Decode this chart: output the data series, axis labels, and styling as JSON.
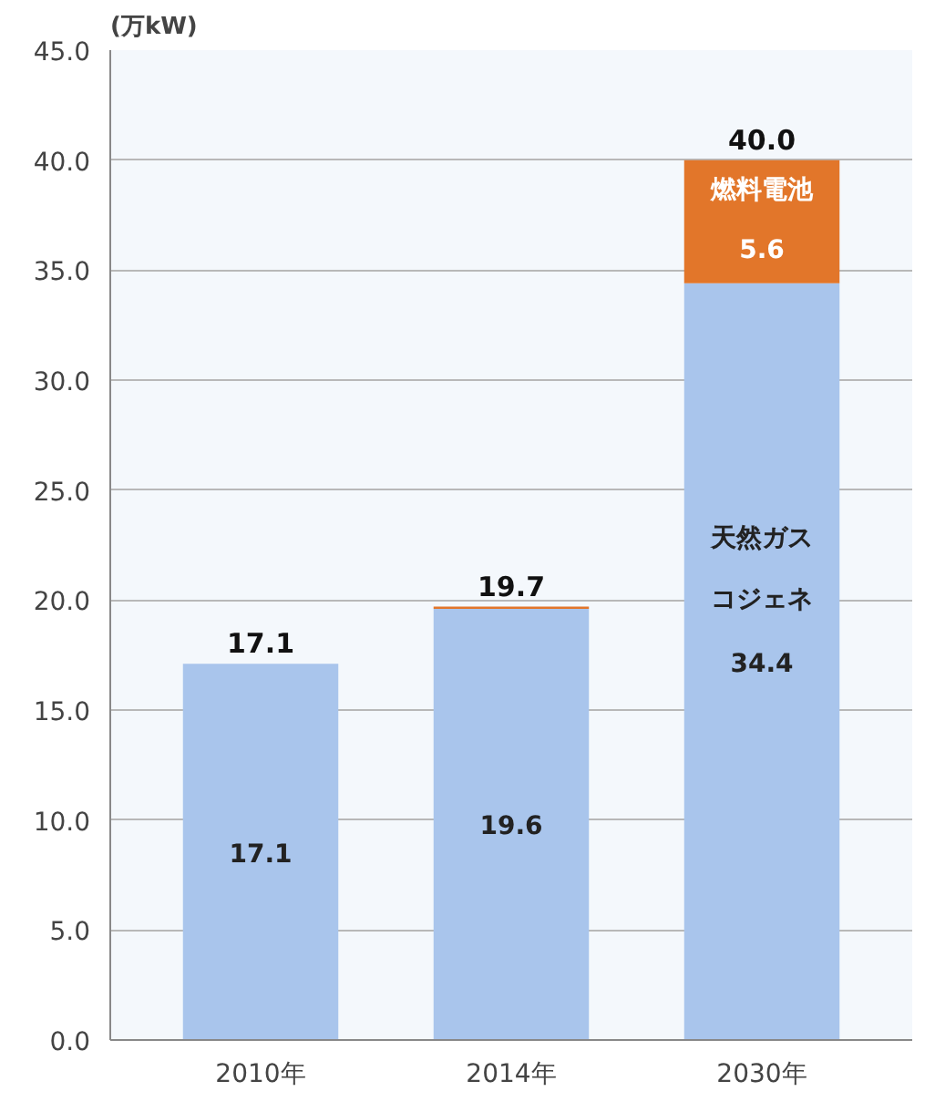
{
  "chart_data": {
    "type": "bar",
    "stacked": true,
    "ylabel": "(万kW)",
    "categories": [
      "2010年",
      "2014年",
      "2030年"
    ],
    "series": [
      {
        "name": "天然ガスコジェネ",
        "color": "#a9c5ec",
        "values": [
          17.1,
          19.6,
          34.4
        ],
        "value_labels": [
          "17.1",
          "19.6",
          "34.4"
        ]
      },
      {
        "name": "燃料電池",
        "color": "#e2762a",
        "values": [
          null,
          0.1,
          5.6
        ],
        "value_labels": [
          null,
          null,
          "5.6"
        ]
      }
    ],
    "totals": [
      "17.1",
      "19.7",
      "40.0"
    ],
    "ylim": [
      0,
      45
    ],
    "yticks": [
      {
        "value": 0,
        "label": "0.0"
      },
      {
        "value": 5,
        "label": "5.0"
      },
      {
        "value": 10,
        "label": "10.0"
      },
      {
        "value": 15,
        "label": "15.0"
      },
      {
        "value": 20,
        "label": "20.0"
      },
      {
        "value": 25,
        "label": "25.0"
      },
      {
        "value": 30,
        "label": "30.0"
      },
      {
        "value": 35,
        "label": "35.0"
      },
      {
        "value": 40,
        "label": "40.0"
      },
      {
        "value": 45,
        "label": "45.0"
      }
    ],
    "grid": "y"
  }
}
